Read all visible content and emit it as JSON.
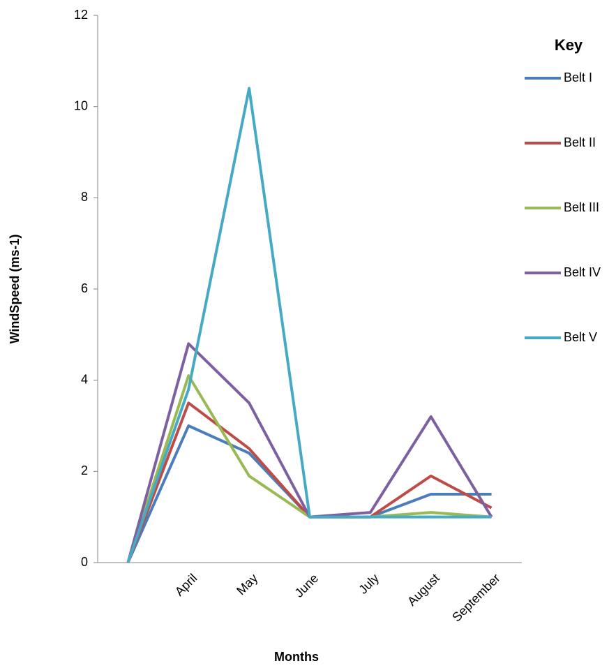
{
  "chart_data": {
    "type": "line",
    "y_label": "WindSpeed (ms-1)",
    "x_label": "Months",
    "legend_title": "Key",
    "legend": "right",
    "categories": [
      null,
      "April",
      "May",
      "June",
      "July",
      "August",
      "September"
    ],
    "ylim": [
      0,
      12
    ],
    "yticks": [
      0,
      2,
      4,
      6,
      8,
      10,
      12
    ],
    "series": [
      {
        "name": "Belt I",
        "color": "#4a7ebb",
        "values": [
          0,
          3,
          2.4,
          1,
          1,
          1.5,
          1.5
        ]
      },
      {
        "name": "Belt II",
        "color": "#be4b48",
        "values": [
          0,
          3.5,
          2.5,
          1,
          1,
          1.9,
          1.2
        ]
      },
      {
        "name": "Belt III",
        "color": "#98b954",
        "values": [
          0,
          4.1,
          1.9,
          1,
          1,
          1.1,
          1
        ]
      },
      {
        "name": "Belt IV",
        "color": "#7d60a0",
        "values": [
          0,
          4.8,
          3.5,
          1,
          1.1,
          3.2,
          1
        ]
      },
      {
        "name": "Belt V",
        "color": "#46aac5",
        "values": [
          0,
          3.8,
          10.4,
          1,
          1,
          1,
          1
        ]
      }
    ]
  }
}
